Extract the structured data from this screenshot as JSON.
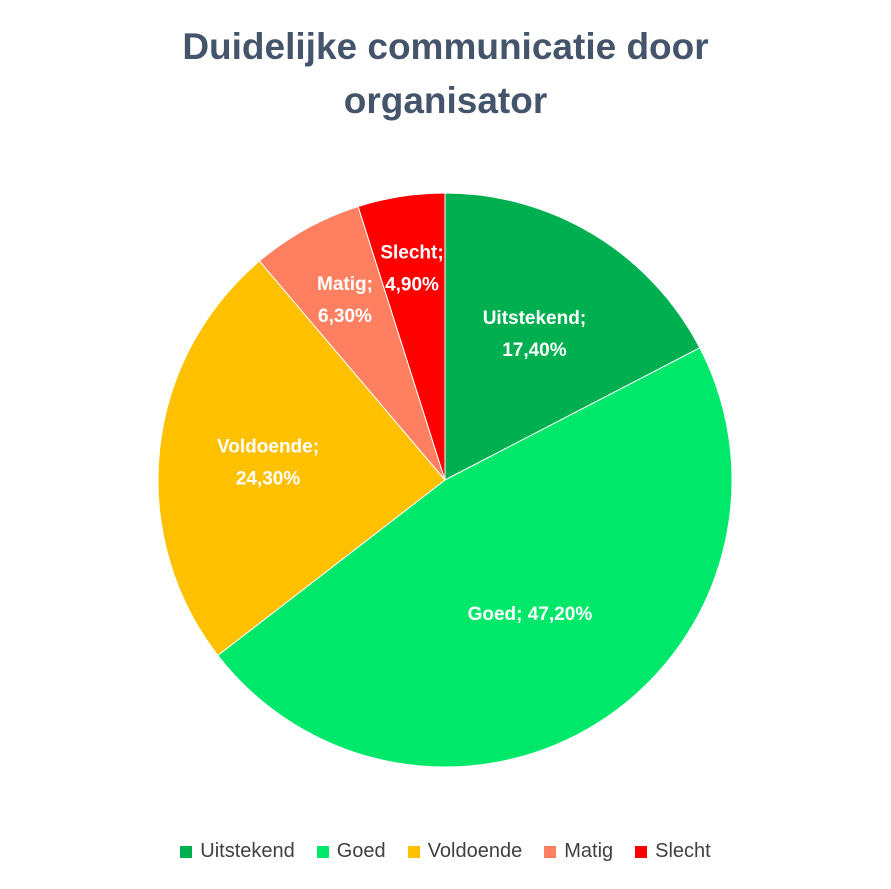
{
  "chart_data": {
    "type": "pie",
    "title_lines": [
      "Duidelijke communicatie door",
      "organisator"
    ],
    "legend_position": "bottom",
    "slices": [
      {
        "name": "Uitstekend",
        "value": 17.4,
        "label_lines": [
          "Uitstekend;",
          "17,40%"
        ],
        "color": "#00B050"
      },
      {
        "name": "Goed",
        "value": 47.2,
        "label_lines": [
          "Goed; 47,20%"
        ],
        "color": "#00E86A"
      },
      {
        "name": "Voldoende",
        "value": 24.3,
        "label_lines": [
          "Voldoende;",
          "24,30%"
        ],
        "color": "#FFC000"
      },
      {
        "name": "Matig",
        "value": 6.3,
        "label_lines": [
          "Matig;",
          "6,30%"
        ],
        "color": "#FF8060"
      },
      {
        "name": "Slecht",
        "value": 4.9,
        "label_lines": [
          "Slecht;",
          "4,90%"
        ],
        "color": "#FF0000"
      }
    ]
  }
}
